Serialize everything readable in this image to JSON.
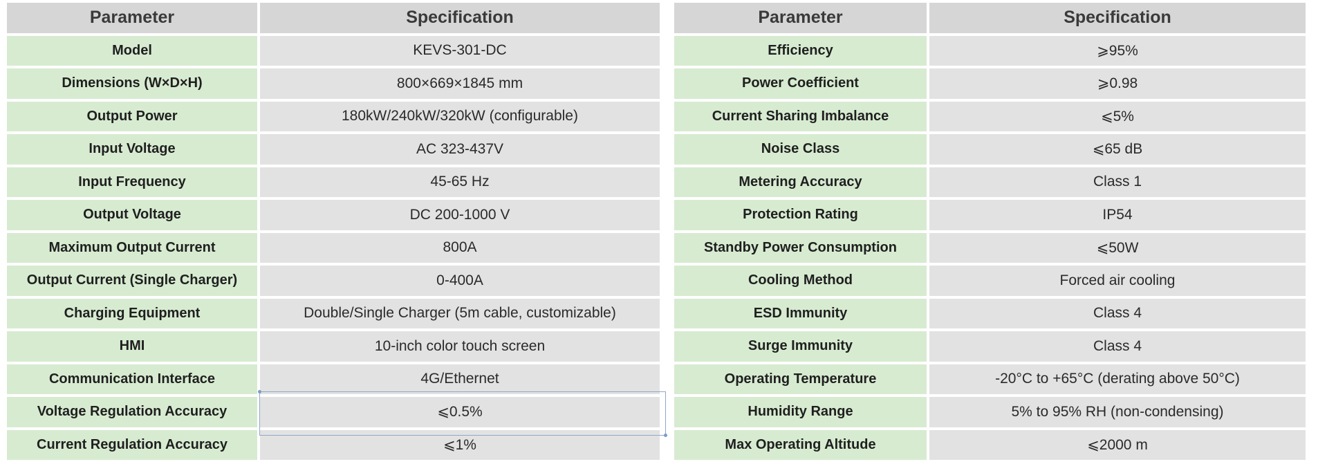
{
  "colors": {
    "header_bg": "#d6d6d6",
    "param_bg": "#d7ebd1",
    "value_bg": "#e2e2e2",
    "selection": "#8fa8c8"
  },
  "left_table": {
    "header": {
      "parameter": "Parameter",
      "specification": "Specification"
    },
    "rows": [
      {
        "parameter": "Model",
        "specification": "KEVS-301-DC"
      },
      {
        "parameter": "Dimensions (W×D×H)",
        "specification": "800×669×1845 mm"
      },
      {
        "parameter": "Output Power",
        "specification": "180kW/240kW/320kW (configurable)"
      },
      {
        "parameter": "Input Voltage",
        "specification": "AC 323-437V"
      },
      {
        "parameter": "Input Frequency",
        "specification": "45-65 Hz"
      },
      {
        "parameter": "Output Voltage",
        "specification": "DC 200-1000 V"
      },
      {
        "parameter": "Maximum Output Current",
        "specification": "800A"
      },
      {
        "parameter": "Output Current (Single Charger)",
        "specification": "0-400A"
      },
      {
        "parameter": "Charging Equipment",
        "specification": "Double/Single Charger (5m cable, customizable)"
      },
      {
        "parameter": "HMI",
        "specification": "10-inch color touch screen"
      },
      {
        "parameter": "Communication Interface",
        "specification": "4G/Ethernet"
      },
      {
        "parameter": "Voltage Regulation Accuracy",
        "specification": "⩽0.5%"
      },
      {
        "parameter": "Current Regulation Accuracy",
        "specification": "⩽1%"
      }
    ]
  },
  "right_table": {
    "header": {
      "parameter": "Parameter",
      "specification": "Specification"
    },
    "rows": [
      {
        "parameter": "Efficiency",
        "specification": "⩾95%"
      },
      {
        "parameter": "Power Coefficient",
        "specification": "⩾0.98"
      },
      {
        "parameter": "Current Sharing Imbalance",
        "specification": "⩽5%"
      },
      {
        "parameter": "Noise Class",
        "specification": "⩽65 dB"
      },
      {
        "parameter": "Metering Accuracy",
        "specification": "Class 1"
      },
      {
        "parameter": "Protection Rating",
        "specification": "IP54"
      },
      {
        "parameter": "Standby Power Consumption",
        "specification": "⩽50W"
      },
      {
        "parameter": "Cooling Method",
        "specification": "Forced air cooling"
      },
      {
        "parameter": "ESD Immunity",
        "specification": "Class 4"
      },
      {
        "parameter": "Surge Immunity",
        "specification": "Class 4"
      },
      {
        "parameter": "Operating Temperature",
        "specification": "-20°C to +65°C (derating above 50°C)"
      },
      {
        "parameter": "Humidity Range",
        "specification": "5% to 95% RH (non-condensing)"
      },
      {
        "parameter": "Max Operating Altitude",
        "specification": "⩽2000 m"
      }
    ]
  }
}
